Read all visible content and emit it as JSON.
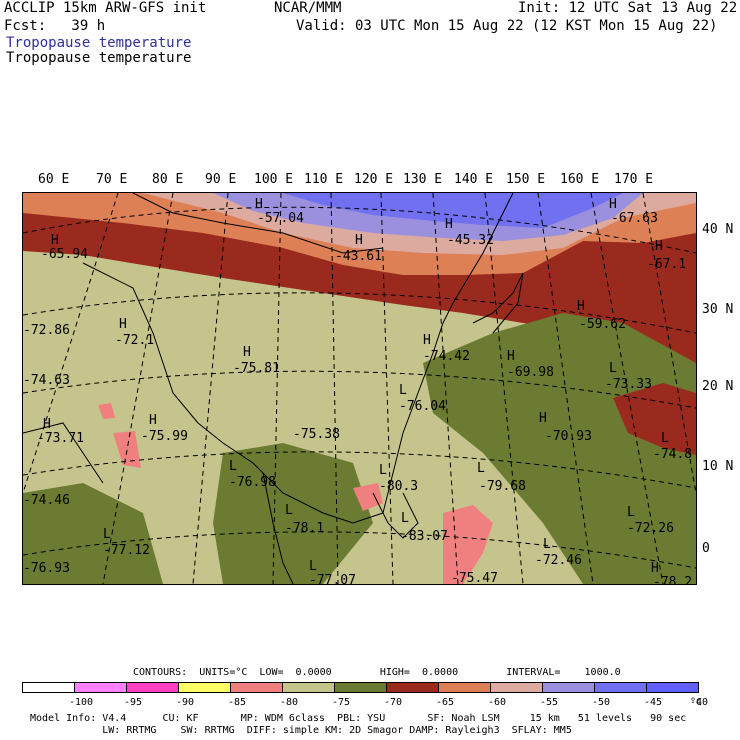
{
  "header": {
    "model": "ACCLIP 15km ARW-GFS init",
    "org": "NCAR/MMM",
    "init": "Init: 12 UTC Sat 13 Aug 22",
    "fcst": "Fcst:   39 h",
    "valid": "Valid: 03 UTC Mon 15 Aug 22 (12 KST Mon 15 Aug 22)",
    "field1": "Tropopause temperature",
    "field2": "Tropopause temperature"
  },
  "lon_labels": [
    "60 E",
    "70 E",
    "80 E",
    "90 E",
    "100 E",
    "110 E",
    "120 E",
    "130 E",
    "140 E",
    "150 E",
    "160 E",
    "170 E"
  ],
  "lat_labels": [
    "40 N",
    "30 N",
    "20 N",
    "10 N",
    "0"
  ],
  "map_labels": [
    {
      "h": "H",
      "v": "-65.94"
    },
    {
      "h": "H",
      "v": "-57.04"
    },
    {
      "h": "H",
      "v": "-43.61"
    },
    {
      "h": "H",
      "v": "-45.32"
    },
    {
      "h": "H",
      "v": "-67.63"
    },
    {
      "h": "H",
      "v": "-67.1"
    },
    {
      "h": "H",
      "v": "-59.62"
    },
    {
      "h": "H",
      "v": "-72.1"
    },
    {
      "h": "H",
      "v": "-75.81"
    },
    {
      "h": "H",
      "v": "-74.42"
    },
    {
      "h": "H",
      "v": "-69.98"
    },
    {
      "h": "L",
      "v": "-73.33"
    },
    {
      "h": "",
      "v": "-74.63"
    },
    {
      "h": "",
      "v": "-72.86"
    },
    {
      "h": "L",
      "v": "-76.04"
    },
    {
      "h": "H",
      "v": "-73.71"
    },
    {
      "h": "H",
      "v": "-75.99"
    },
    {
      "h": "",
      "v": "-75.38"
    },
    {
      "h": "H",
      "v": "-70.93"
    },
    {
      "h": "L",
      "v": "-74.8"
    },
    {
      "h": "L",
      "v": "-76.98"
    },
    {
      "h": "L",
      "v": "-80.3"
    },
    {
      "h": "L",
      "v": "-79.68"
    },
    {
      "h": "",
      "v": "-74.46"
    },
    {
      "h": "L",
      "v": "-77.12"
    },
    {
      "h": "L",
      "v": "-78.1"
    },
    {
      "h": "L",
      "v": "-83.07"
    },
    {
      "h": "L",
      "v": "-72.46"
    },
    {
      "h": "L",
      "v": "-72.26"
    },
    {
      "h": "",
      "v": "-76.93"
    },
    {
      "h": "L",
      "v": "-77.07"
    },
    {
      "h": "",
      "v": "-75.47"
    },
    {
      "h": "H",
      "v": "-78.2"
    }
  ],
  "footer": {
    "contours": "CONTOURS:  UNITS=°C  LOW=  0.0000        HIGH=  0.0000        INTERVAL=    1000.0",
    "colorbar_labels": [
      "-100",
      "-95",
      "-90",
      "-85",
      "-80",
      "-75",
      "-70",
      "-65",
      "-60",
      "-55",
      "-50",
      "-45",
      "-40",
      "°C"
    ],
    "colorbar_colors": [
      "#ffffff",
      "#ff80ff",
      "#ff40c0",
      "#ffff66",
      "#f08080",
      "#c4c48c",
      "#6b7b32",
      "#9b2a1e",
      "#dd8055",
      "#ddaaa0",
      "#9b90dd",
      "#7070f0",
      "#6060ff"
    ],
    "info1": "Model Info: V4.4      CU: KF       MP: WDM 6class  PBL: YSU       SF: Noah LSM     15 km   51 levels   90 sec",
    "info2": "            LW: RRTMG    SW: RRTMG  DIFF: simple KM: 2D Smagor DAMP: Rayleigh3  SFLAY: MM5"
  }
}
